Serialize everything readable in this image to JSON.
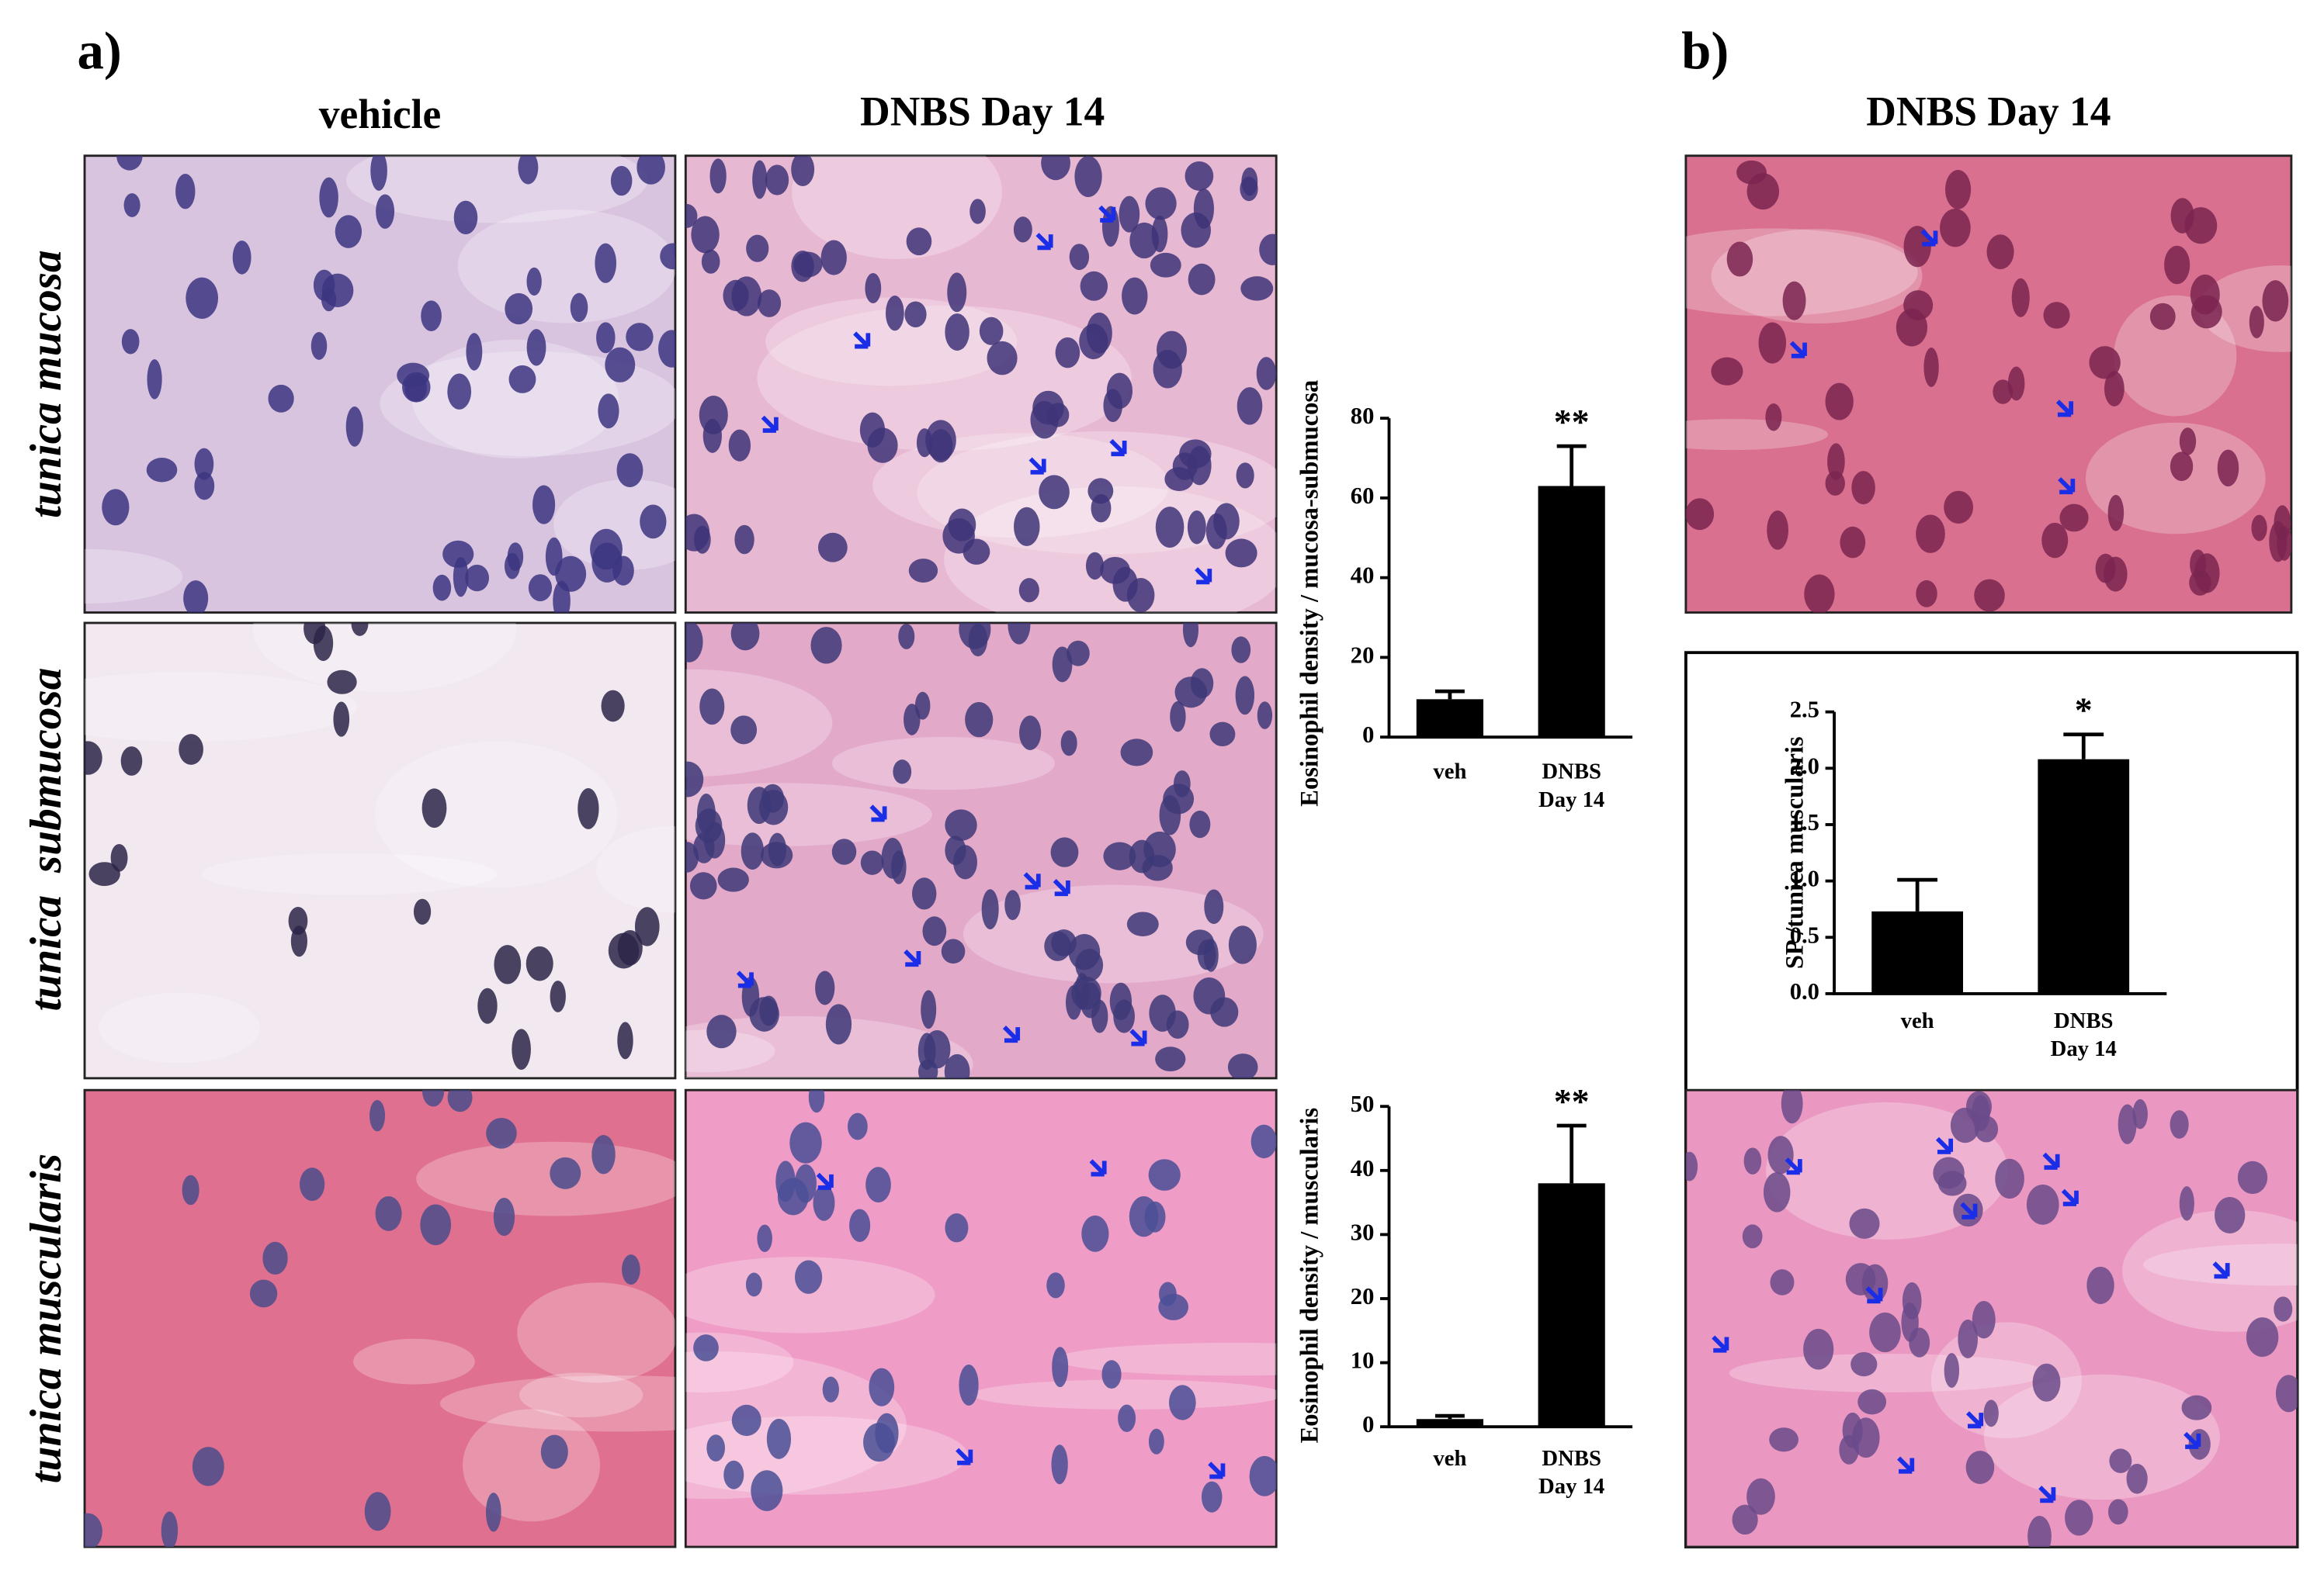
{
  "figure": {
    "panel_a": "a)",
    "panel_b": "b)",
    "column_headers": [
      "vehicle",
      "DNBS Day 14"
    ],
    "panel_b_header": "DNBS Day 14",
    "row_labels": [
      "tunica mucosa",
      "tunica  submucosa",
      "tunica muscularis"
    ]
  },
  "chart_data": [
    {
      "type": "bar",
      "ylabel": "Eosinophil density / mucosa-submucosa",
      "categories": [
        "veh",
        "DNBS\nDay 14"
      ],
      "values": [
        9.5,
        63
      ],
      "errors": [
        2,
        10
      ],
      "color": "#000000",
      "ylim": [
        0,
        80
      ],
      "yticks": [
        0,
        20,
        40,
        60,
        80
      ],
      "grid": false,
      "annotation": "**"
    },
    {
      "type": "bar",
      "ylabel": "Eosinophil density / muscularis",
      "categories": [
        "veh",
        "DNBS\nDay 14"
      ],
      "values": [
        1.2,
        38
      ],
      "errors": [
        0.5,
        9
      ],
      "color": "#000000",
      "ylim": [
        0,
        50
      ],
      "yticks": [
        0,
        10,
        20,
        30,
        40,
        50
      ],
      "grid": false,
      "annotation": "**"
    },
    {
      "type": "bar",
      "ylabel": "SP /tunica muscularis",
      "categories": [
        "veh",
        "DNBS\nDay 14"
      ],
      "values": [
        0.73,
        2.08
      ],
      "errors": [
        0.28,
        0.22
      ],
      "color": "#000000",
      "ylim": [
        0,
        2.5
      ],
      "yticks": [
        {
          "value": 0,
          "label": "0.0"
        },
        0.5,
        {
          "value": 1,
          "label": "1.0"
        },
        1.5,
        {
          "value": 2,
          "label": "2.0"
        },
        2.5
      ],
      "grid": false,
      "annotation": "*"
    }
  ]
}
